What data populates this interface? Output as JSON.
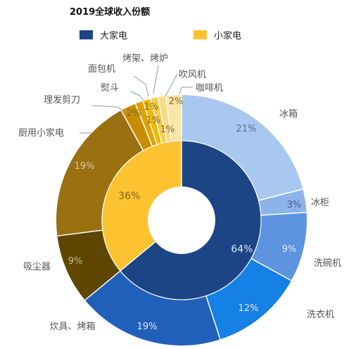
{
  "chart_data": {
    "type": "pie",
    "title": "2019全球收入份额",
    "legend_position": "top",
    "inner": {
      "labels": [
        "大家电",
        "小家电"
      ],
      "values": [
        64,
        36
      ],
      "display": [
        "64%",
        "36%"
      ],
      "colors": [
        "#1c4586",
        "#fdc230"
      ]
    },
    "outer": {
      "labels": [
        "冰箱",
        "冰柜",
        "洗碗机",
        "洗衣机",
        "炊具、烤箱",
        "吸尘器",
        "厨用小家电",
        "理发剪刀",
        "熨斗",
        "面包机",
        "烤架、烤炉",
        "吹风机",
        "咖啡机"
      ],
      "values": [
        21,
        3,
        9,
        12,
        19,
        9,
        19,
        2,
        1,
        1,
        1,
        1,
        2
      ],
      "display": [
        "21%",
        "3%",
        "9%",
        "12%",
        "19%",
        "9%",
        "19%",
        "2%",
        "",
        "1%",
        "1%",
        "1%",
        "2%"
      ],
      "colors": [
        "#a9c8f0",
        "#8db4ea",
        "#5e93df",
        "#1580e5",
        "#2160ba",
        "#5e4500",
        "#9a7010",
        "#c98e00",
        "#e0a200",
        "#f0b800",
        "#f7cd4c",
        "#f8da80",
        "#fae5a6"
      ]
    }
  }
}
